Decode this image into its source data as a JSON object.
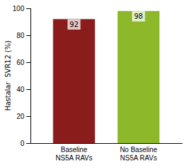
{
  "chart_data": {
    "type": "bar",
    "categories": [
      "Baseline\nNS5A RAVs",
      "No Baseline\nNS5A RAVs"
    ],
    "values": [
      92,
      98
    ],
    "colors": [
      "#8B1C1C",
      "#8DB82A"
    ],
    "ylabel": "Hastalar  SVR12 (%)",
    "ylim": [
      0,
      100
    ],
    "yticks": [
      0,
      20,
      40,
      60,
      80,
      100
    ],
    "data_labels": true,
    "grid": false
  }
}
